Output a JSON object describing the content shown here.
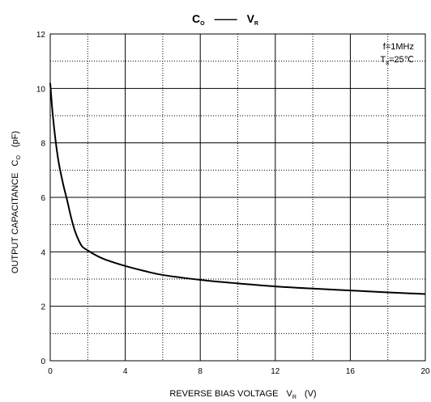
{
  "chart_data": {
    "type": "line",
    "title": {
      "left_symbol": "C",
      "left_subscript": "O",
      "dash": "——",
      "right_symbol": "V",
      "right_subscript": "R"
    },
    "xlabel": {
      "text": "REVERSE BIAS VOLTAGE",
      "symbol": "V",
      "subscript": "R",
      "unit": "(V)"
    },
    "ylabel": {
      "text": "OUTPUT CAPACITANCE",
      "symbol": "C",
      "subscript": "O",
      "unit": "(pF)"
    },
    "xlim": [
      0,
      20
    ],
    "ylim": [
      0,
      12
    ],
    "x_ticks": [
      0,
      4,
      8,
      12,
      16,
      20
    ],
    "x_tick_labels": [
      "0",
      "4",
      "8",
      "12",
      "16",
      "20"
    ],
    "y_ticks": [
      0,
      2,
      4,
      6,
      8,
      10,
      12
    ],
    "y_tick_labels": [
      "0",
      "2",
      "4",
      "6",
      "8",
      "10",
      "12"
    ],
    "x_minor_grid": [
      2,
      6,
      10,
      14,
      18
    ],
    "y_minor_grid": [
      1,
      3,
      5,
      7,
      9,
      11
    ],
    "grid": true,
    "annotation": {
      "line1": "f=1MHz",
      "line2_symbol": "T",
      "line2_subscript": "a",
      "line2_value": "=25℃",
      "placement": "top-right"
    },
    "series": [
      {
        "color": "#000000",
        "x": [
          0,
          0.1,
          0.2,
          0.3,
          0.4,
          0.5,
          0.7,
          0.9,
          1.1,
          1.3,
          1.5,
          1.7,
          2.0,
          2.5,
          3.0,
          4.0,
          5.0,
          6.0,
          8.0,
          10.0,
          12.0,
          14.0,
          16.0,
          18.0,
          20.0
        ],
        "y": [
          10.2,
          9.3,
          8.6,
          8.0,
          7.5,
          7.1,
          6.45,
          5.9,
          5.3,
          4.8,
          4.45,
          4.2,
          4.05,
          3.85,
          3.7,
          3.48,
          3.3,
          3.15,
          2.97,
          2.84,
          2.73,
          2.65,
          2.58,
          2.51,
          2.45
        ]
      }
    ]
  }
}
